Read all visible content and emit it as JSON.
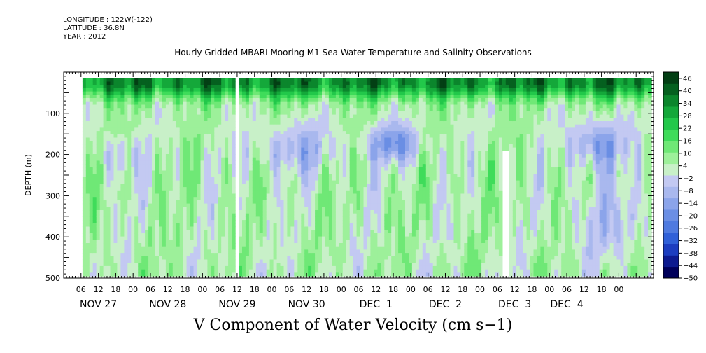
{
  "header": {
    "longitude": "LONGITUDE : 122W(-122)",
    "latitude": "LATITUDE : 36.8N",
    "year": "YEAR : 2012"
  },
  "chart_data": {
    "type": "heatmap",
    "title": "Hourly Gridded MBARI Mooring M1 Sea Water Temperature and Salinity Observations",
    "subtitle": "V Component of Water Velocity (cm s−1)",
    "ylabel": "DEPTH (m)",
    "xlabel": "",
    "ylim": [
      500,
      0
    ],
    "y_ticks": [
      "100",
      "200",
      "300",
      "400",
      "500"
    ],
    "y_tick_values": [
      100,
      200,
      300,
      400,
      500
    ],
    "x_range_hours": [
      -24,
      180
    ],
    "x_hour_labels": [
      "06",
      "12",
      "18",
      "00",
      "06",
      "12",
      "18",
      "00",
      "06",
      "12",
      "18",
      "00",
      "06",
      "12",
      "18",
      "00",
      "06",
      "12",
      "18",
      "00",
      "06",
      "12",
      "18",
      "00",
      "06",
      "12",
      "18",
      "00",
      "06",
      "12",
      "18",
      "00"
    ],
    "x_hour_values": [
      -18,
      -12,
      -6,
      0,
      6,
      12,
      18,
      24,
      30,
      36,
      42,
      48,
      54,
      60,
      66,
      72,
      78,
      84,
      90,
      96,
      102,
      108,
      114,
      120,
      126,
      132,
      138,
      144,
      150,
      156,
      162,
      168
    ],
    "x_day_labels": [
      {
        "label": "NOV 27",
        "hour": -12
      },
      {
        "label": "NOV 28",
        "hour": 12
      },
      {
        "label": "NOV 29",
        "hour": 36
      },
      {
        "label": "NOV 30",
        "hour": 60
      },
      {
        "label": "DEC  1",
        "hour": 84
      },
      {
        "label": "DEC  2",
        "hour": 108
      },
      {
        "label": "DEC  3",
        "hour": 132
      },
      {
        "label": "DEC  4",
        "hour": 150
      }
    ],
    "colorbar": {
      "labels": [
        "46",
        "40",
        "34",
        "28",
        "22",
        "16",
        "10",
        "4",
        "−2",
        "−8",
        "−14",
        "−20",
        "−26",
        "−32",
        "−38",
        "−44",
        "−50"
      ],
      "values": [
        46,
        40,
        34,
        28,
        22,
        16,
        10,
        4,
        -2,
        -8,
        -14,
        -20,
        -26,
        -32,
        -38,
        -44,
        -50
      ],
      "min": -50,
      "max": 49,
      "colors_low_to_high": [
        "#00005a",
        "#0d1a90",
        "#1c3dc0",
        "#3060d8",
        "#4f7ae0",
        "#6a8ee4",
        "#8ba4ea",
        "#a9b8ee",
        "#c3c9f2",
        "#c8f0c8",
        "#9df09a",
        "#6fe876",
        "#3fdc5a",
        "#22c84a",
        "#14a83a",
        "#0b862c",
        "#05601f",
        "#033f14"
      ]
    },
    "grid": false,
    "legend": "colorbar-right"
  }
}
